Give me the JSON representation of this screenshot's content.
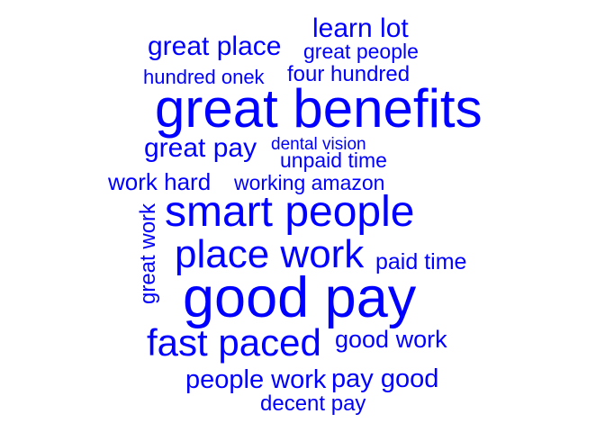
{
  "color": "#0000ff",
  "words": [
    {
      "id": "learn-lot",
      "text": "learn lot"
    },
    {
      "id": "great-place",
      "text": "great place"
    },
    {
      "id": "great-people",
      "text": "great people"
    },
    {
      "id": "hundred-onek",
      "text": "hundred onek"
    },
    {
      "id": "four-hundred",
      "text": "four hundred"
    },
    {
      "id": "great-benefits",
      "text": "great benefits"
    },
    {
      "id": "great-pay",
      "text": "great pay"
    },
    {
      "id": "dental-vision",
      "text": "dental vision"
    },
    {
      "id": "unpaid-time",
      "text": "unpaid time"
    },
    {
      "id": "work-hard",
      "text": "work hard"
    },
    {
      "id": "working-amazon",
      "text": "working amazon"
    },
    {
      "id": "great-work",
      "text": "great work"
    },
    {
      "id": "smart-people",
      "text": "smart people"
    },
    {
      "id": "place-work",
      "text": "place work"
    },
    {
      "id": "paid-time",
      "text": "paid time"
    },
    {
      "id": "good-pay",
      "text": "good pay"
    },
    {
      "id": "fast-paced",
      "text": "fast paced"
    },
    {
      "id": "good-work",
      "text": "good work"
    },
    {
      "id": "people-work",
      "text": "people work"
    },
    {
      "id": "pay-good",
      "text": "pay good"
    },
    {
      "id": "decent-pay",
      "text": "decent pay"
    }
  ]
}
